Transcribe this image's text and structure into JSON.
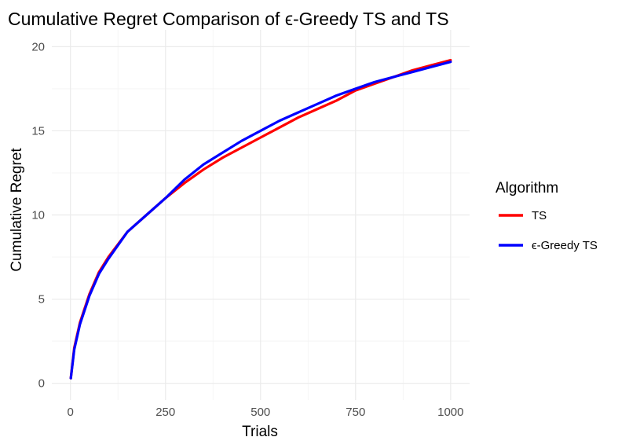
{
  "chart_data": {
    "type": "line",
    "title": "Cumulative Regret Comparison of ϵ-Greedy TS and TS",
    "xlabel": "Trials",
    "ylabel": "Cumulative Regret",
    "xlim": [
      1,
      1000
    ],
    "ylim": [
      0,
      20
    ],
    "x_ticks": [
      0,
      250,
      500,
      750,
      1000
    ],
    "y_ticks": [
      0,
      5,
      10,
      15,
      20
    ],
    "grid": true,
    "legend": {
      "title": "Algorithm",
      "position": "right"
    },
    "series": [
      {
        "name": "TS",
        "color": "#ff0000",
        "x": [
          1,
          10,
          25,
          50,
          75,
          100,
          150,
          200,
          250,
          300,
          350,
          400,
          450,
          500,
          550,
          600,
          650,
          700,
          750,
          800,
          850,
          900,
          950,
          1000
        ],
        "y": [
          0.3,
          2.1,
          3.6,
          5.3,
          6.6,
          7.5,
          9.0,
          10.0,
          11.0,
          11.9,
          12.7,
          13.4,
          14.0,
          14.6,
          15.2,
          15.8,
          16.3,
          16.8,
          17.4,
          17.8,
          18.2,
          18.6,
          18.9,
          19.2
        ]
      },
      {
        "name": "ϵ-Greedy TS",
        "color": "#0000ff",
        "x": [
          1,
          10,
          25,
          50,
          75,
          100,
          150,
          200,
          250,
          300,
          350,
          400,
          450,
          500,
          550,
          600,
          650,
          700,
          750,
          800,
          850,
          900,
          950,
          1000
        ],
        "y": [
          0.3,
          2.0,
          3.5,
          5.2,
          6.5,
          7.4,
          9.0,
          10.0,
          11.0,
          12.1,
          13.0,
          13.7,
          14.4,
          15.0,
          15.6,
          16.1,
          16.6,
          17.1,
          17.5,
          17.9,
          18.2,
          18.5,
          18.8,
          19.1
        ]
      }
    ]
  }
}
